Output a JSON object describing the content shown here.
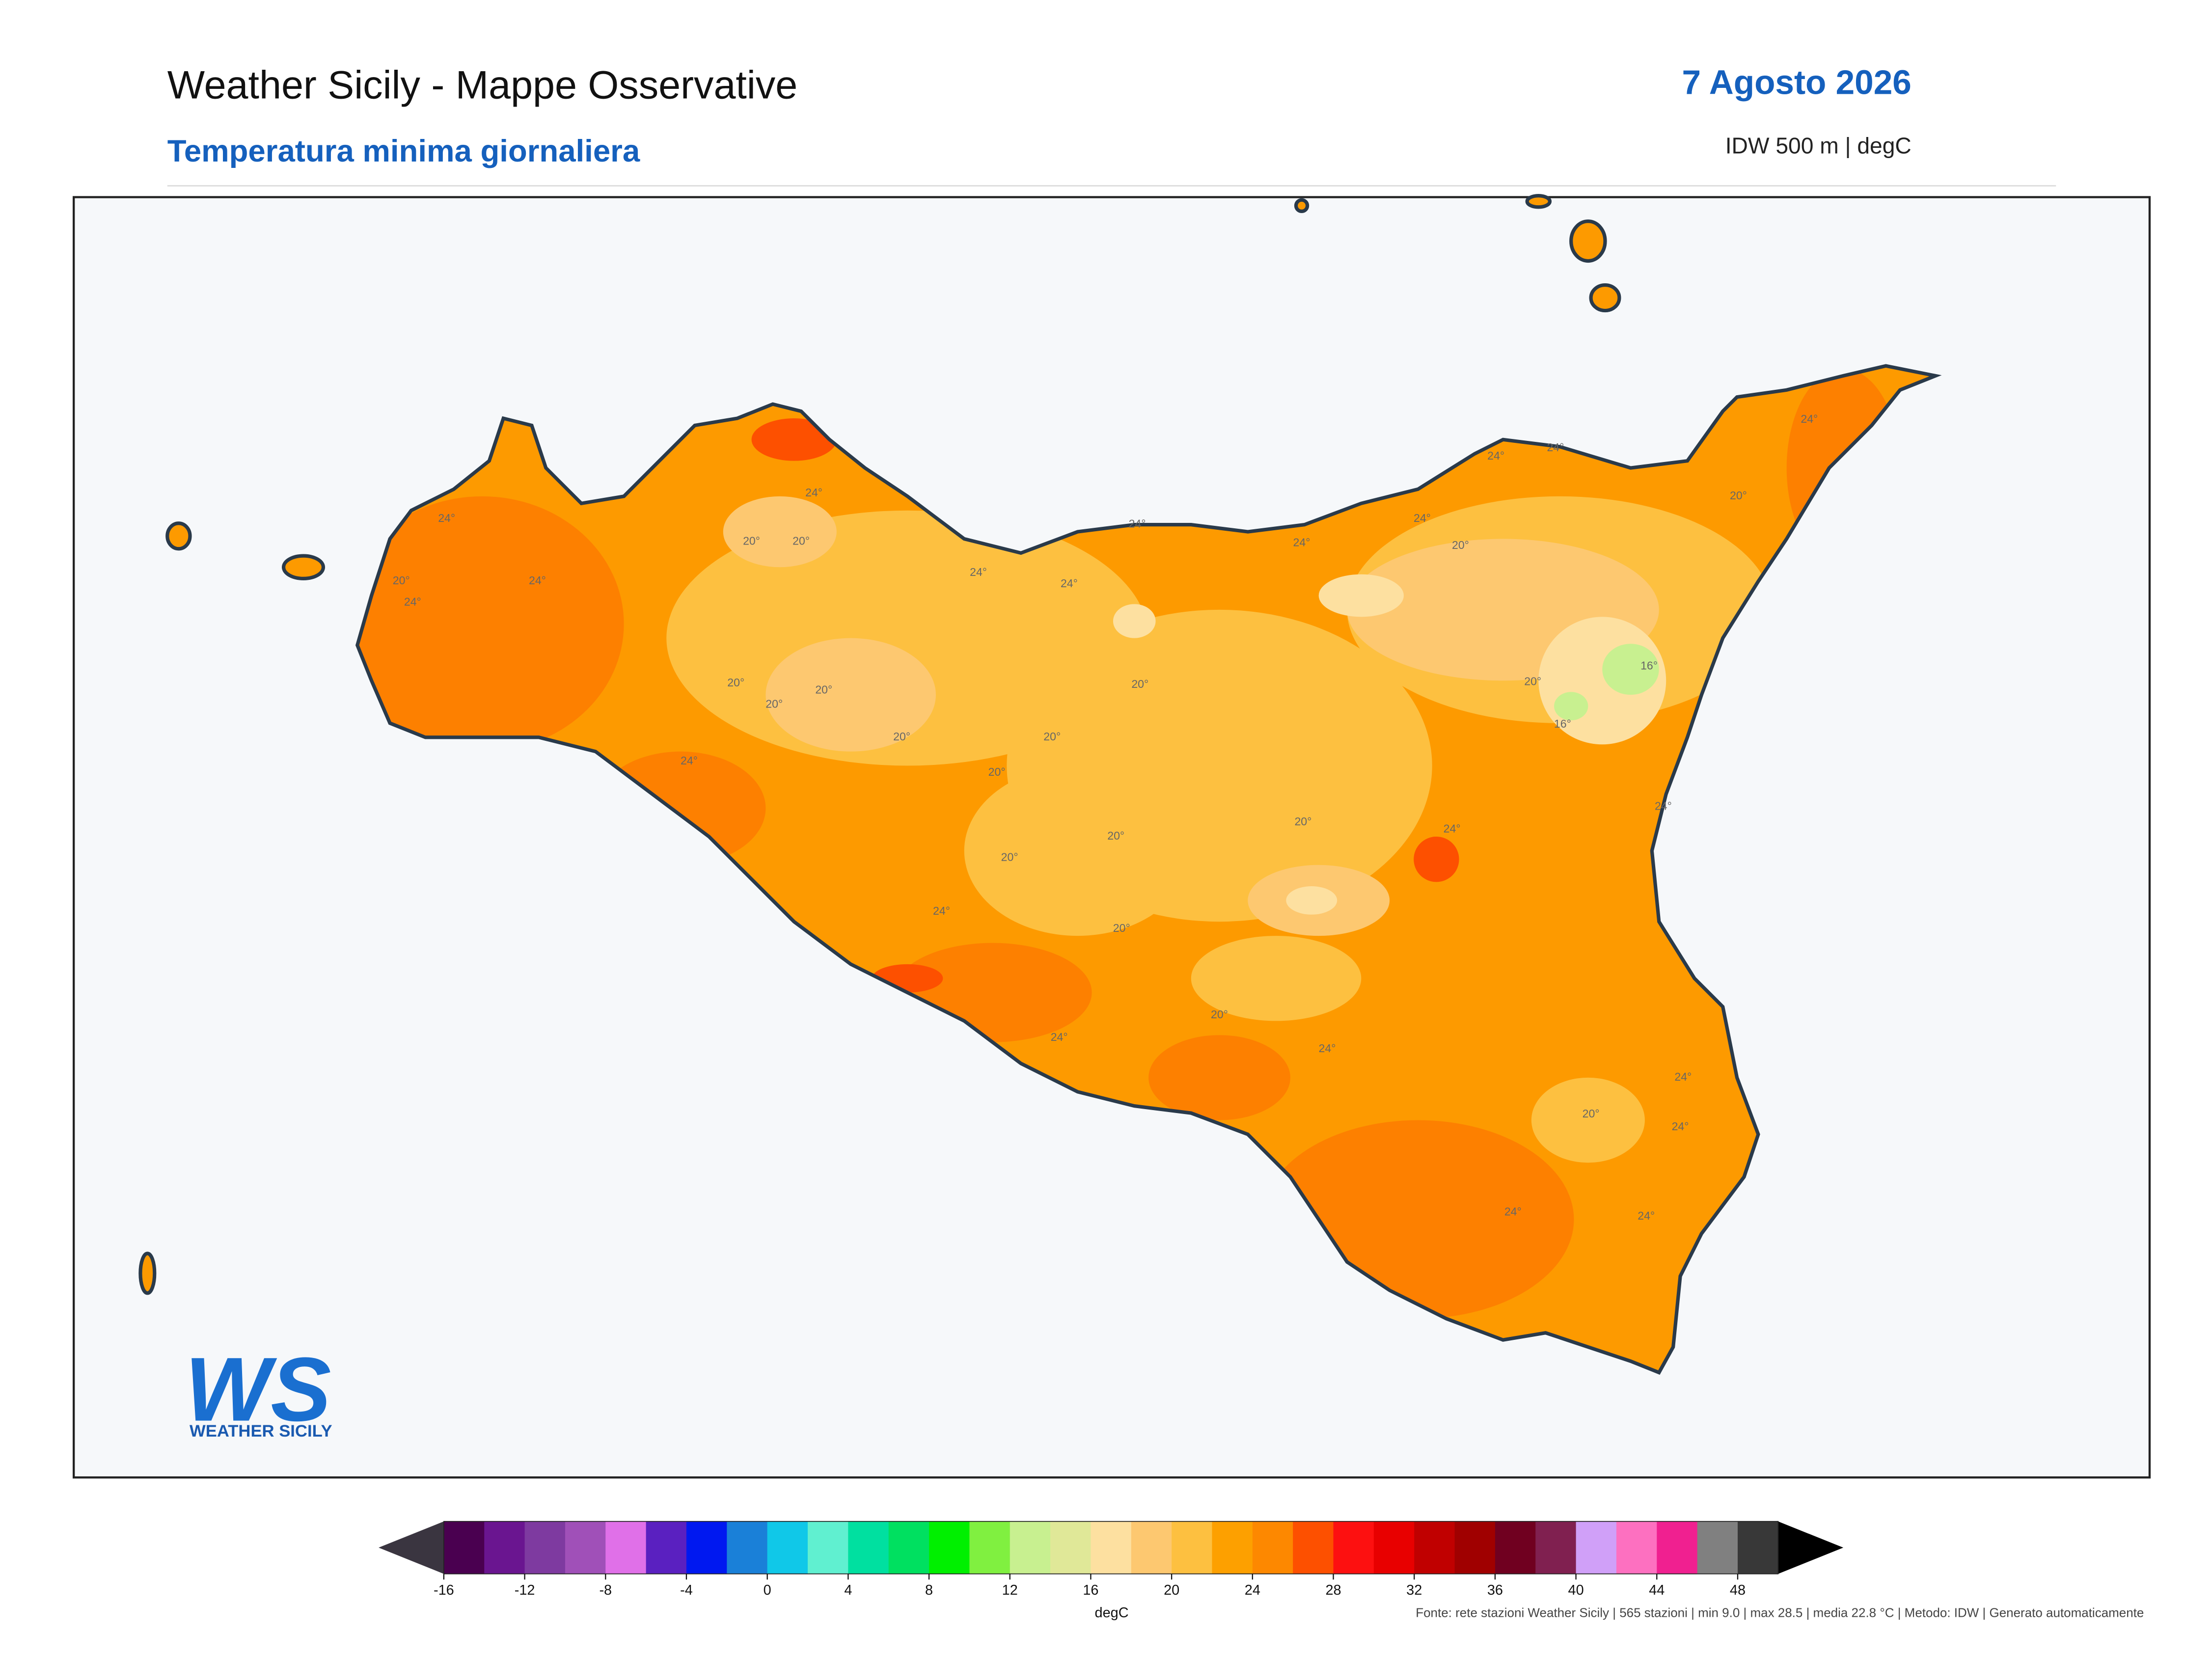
{
  "header": {
    "title": "Weather Sicily - Mappe Osservative",
    "subtitle": "Temperatura minima giornaliera",
    "date": "7 Agosto 2026",
    "method": "IDW 500 m | degC"
  },
  "map": {
    "contour_labels": [
      "24°",
      "20°",
      "24°",
      "24°",
      "24°",
      "20°",
      "20°",
      "24°",
      "24°",
      "24°",
      "20°",
      "20°",
      "20°",
      "24°",
      "20°",
      "20°",
      "20°",
      "20°",
      "20°",
      "20°",
      "24°",
      "20°",
      "24°",
      "20°",
      "24°",
      "20°",
      "24°",
      "24°",
      "20°",
      "24°",
      "24°",
      "24°",
      "20°",
      "24°",
      "16°",
      "16°",
      "20°",
      "24°",
      "24°",
      "24°",
      "20°",
      "24°",
      "24°"
    ]
  },
  "logo": {
    "mark": "WS",
    "name": "WEATHER SICILY"
  },
  "colorbar": {
    "range": [
      -16,
      50
    ],
    "ticks": [
      -16,
      -12,
      -8,
      -4,
      0,
      4,
      8,
      12,
      16,
      20,
      24,
      28,
      32,
      36,
      40,
      44,
      48
    ],
    "label": "degC",
    "colors": [
      "#4a0050",
      "#6a1590",
      "#7e3aa0",
      "#a050b8",
      "#e070e8",
      "#5a20c0",
      "#0018f0",
      "#1a80d8",
      "#10c8e8",
      "#60f0d0",
      "#00e0a0",
      "#00e060",
      "#00f000",
      "#80f040",
      "#c8f090",
      "#e0e898",
      "#fde0a0",
      "#fdc870",
      "#fdc040",
      "#fda000",
      "#fd8800",
      "#fd5000",
      "#fd1010",
      "#e80000",
      "#c00000",
      "#a00000",
      "#700020",
      "#802050",
      "#d0a0f8",
      "#fd70c0",
      "#f02090",
      "#808080",
      "#383838"
    ],
    "under_color": "#3a3540",
    "over_color": "#000000"
  },
  "footer": "Fonte: rete stazioni Weather Sicily | 565 stazioni | min 9.0 | max 28.5 | media 22.8 °C | Metodo: IDW | Generato automaticamente"
}
